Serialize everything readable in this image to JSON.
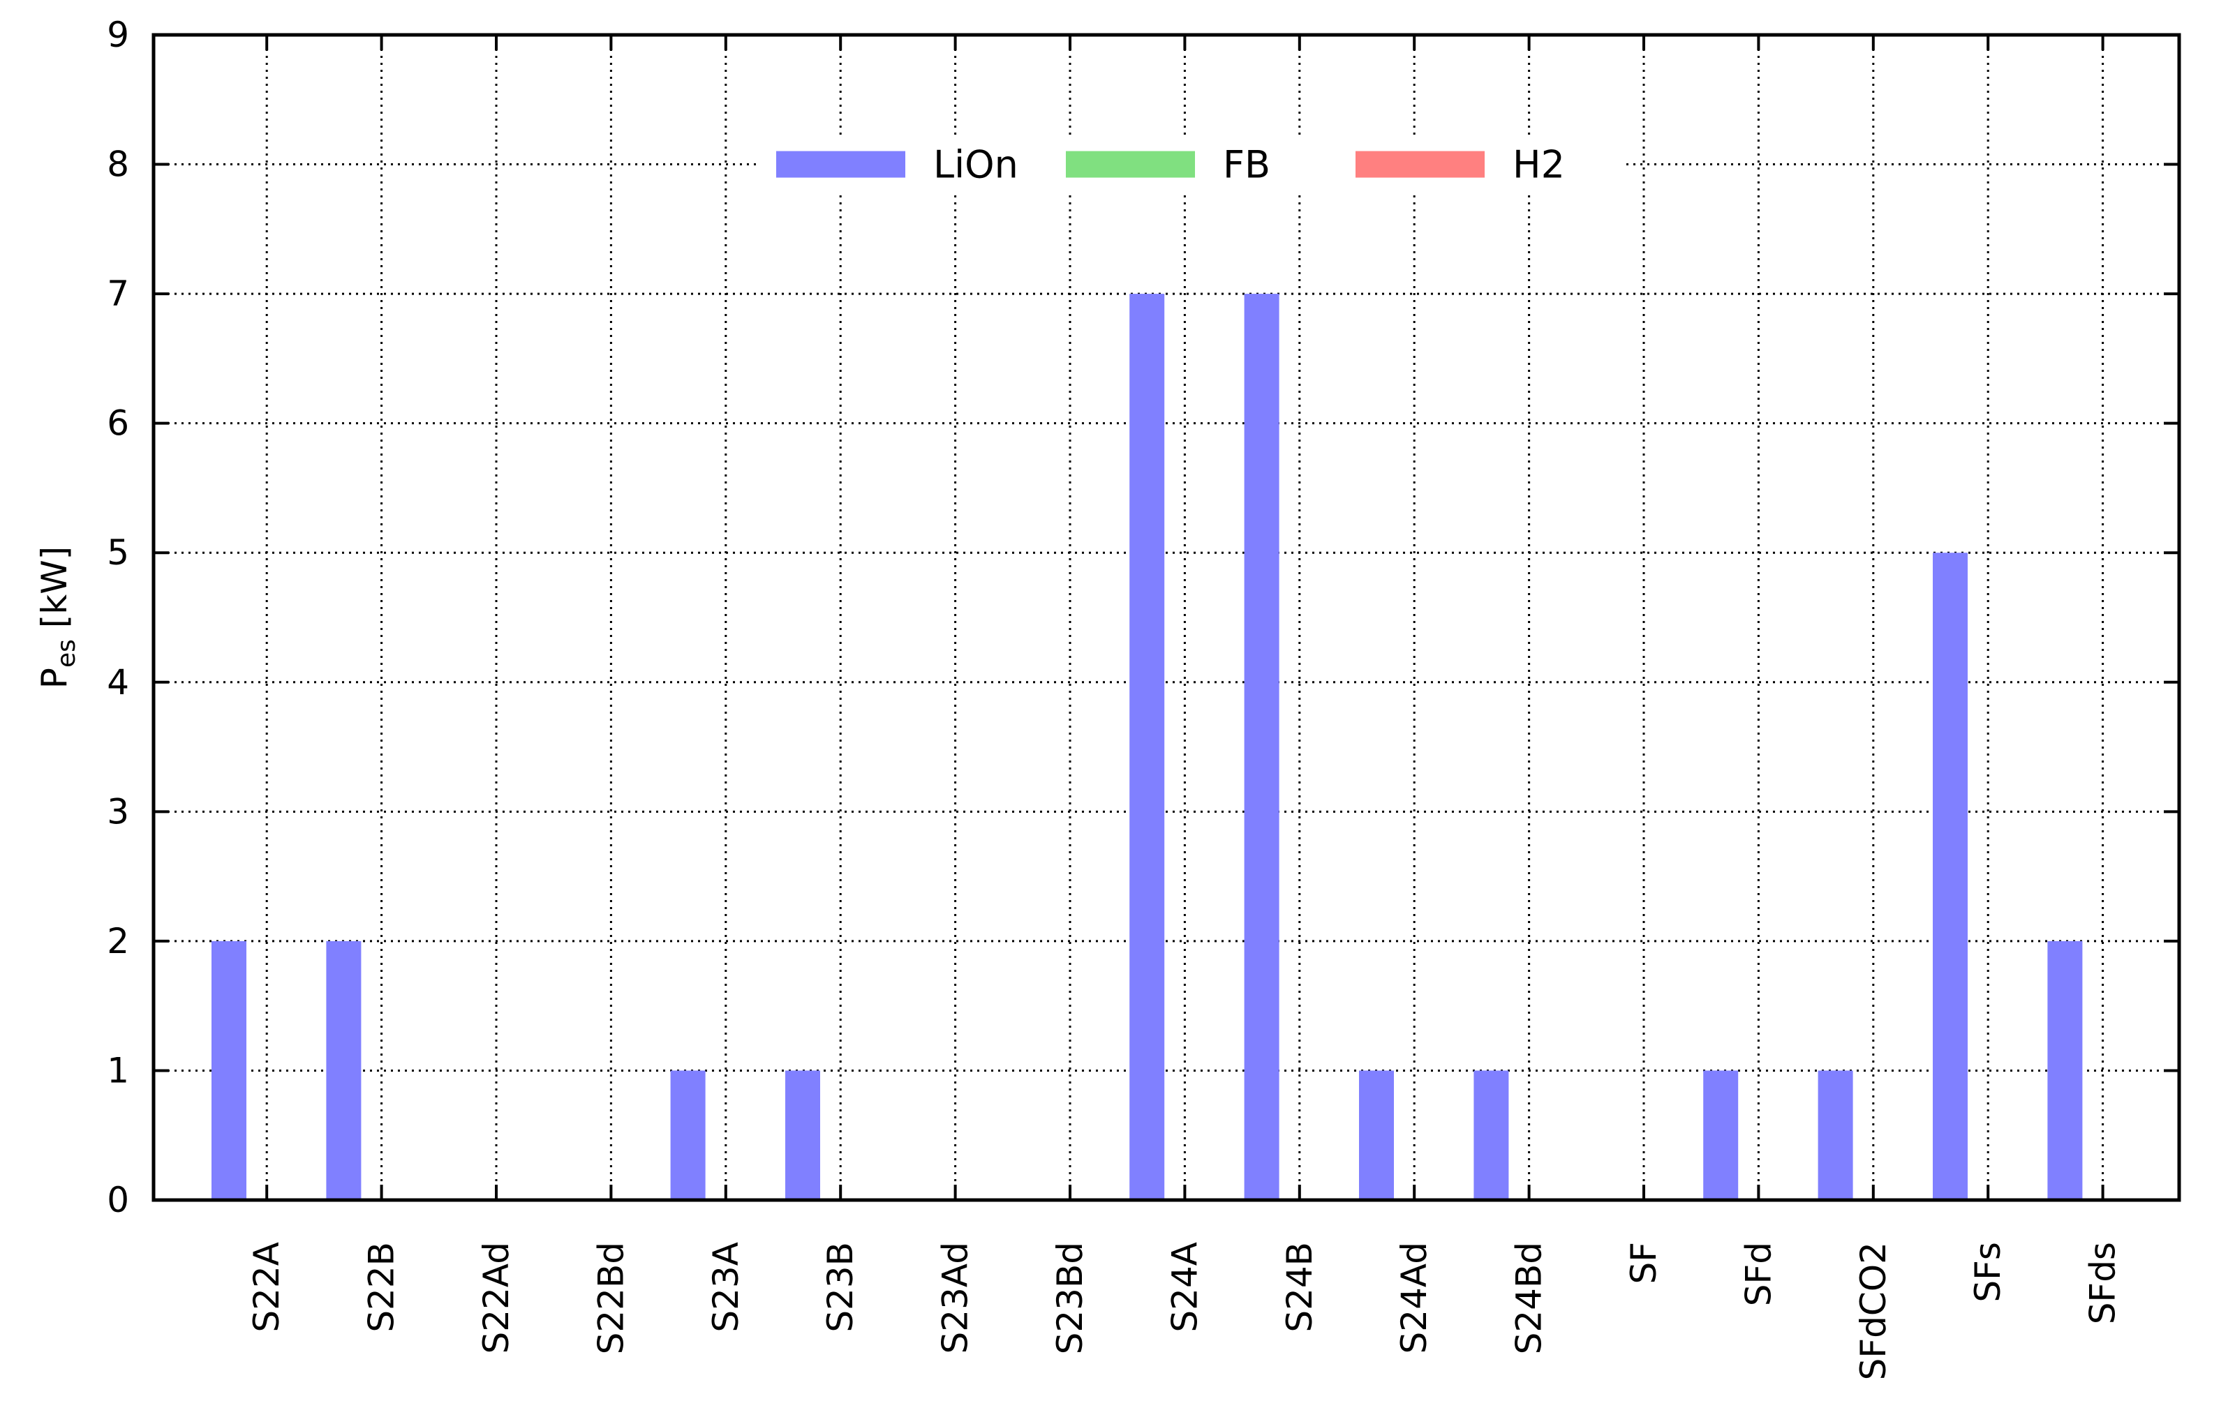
{
  "chart_data": {
    "type": "bar",
    "categories": [
      "S22A",
      "S22B",
      "S22Ad",
      "S22Bd",
      "S23A",
      "S23B",
      "S23Ad",
      "S23Bd",
      "S24A",
      "S24B",
      "S24Ad",
      "S24Bd",
      "SF",
      "SFd",
      "SFdCO2",
      "SFs",
      "SFds"
    ],
    "series": [
      {
        "name": "LiOn",
        "color": "#8080ff",
        "values": [
          2,
          2,
          0,
          0,
          1,
          1,
          0,
          0,
          7,
          7,
          1,
          1,
          0,
          1,
          1,
          5,
          2
        ]
      },
      {
        "name": "FB",
        "color": "#80e080",
        "values": [
          0,
          0,
          0,
          0,
          0,
          0,
          0,
          0,
          0,
          0,
          0,
          0,
          0,
          0,
          0,
          0,
          0
        ]
      },
      {
        "name": "H2",
        "color": "#ff8080",
        "values": [
          0,
          0,
          0,
          0,
          0,
          0,
          0,
          0,
          0,
          0,
          0,
          0,
          0,
          0,
          0,
          0,
          0
        ]
      }
    ],
    "ylabel": {
      "main": "P",
      "sub": "es",
      "unit": " [kW]"
    },
    "ylim": [
      0,
      9
    ],
    "yticks": [
      "0",
      "1",
      "2",
      "3",
      "4",
      "5",
      "6",
      "7",
      "8",
      "9"
    ],
    "grid": true,
    "legend_position": "top-center"
  }
}
